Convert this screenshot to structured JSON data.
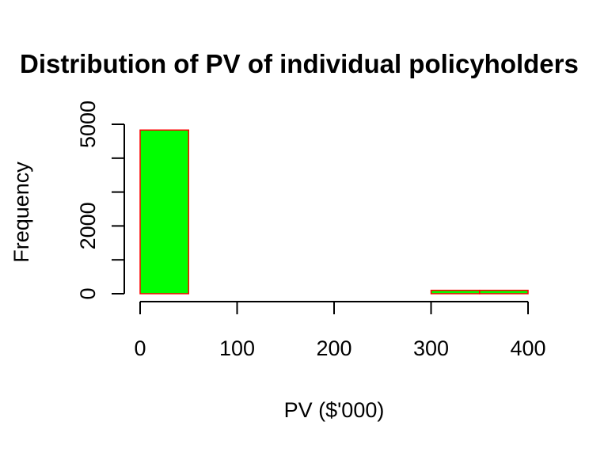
{
  "chart_data": {
    "type": "bar",
    "title": "Distribution of PV of individual policyholders",
    "xlabel": "PV ($'000)",
    "ylabel": "Frequency",
    "bins": [
      {
        "start": 0,
        "end": 50,
        "count": 4830
      },
      {
        "start": 50,
        "end": 100,
        "count": 0
      },
      {
        "start": 100,
        "end": 150,
        "count": 0
      },
      {
        "start": 150,
        "end": 200,
        "count": 0
      },
      {
        "start": 200,
        "end": 250,
        "count": 0
      },
      {
        "start": 250,
        "end": 300,
        "count": 0
      },
      {
        "start": 300,
        "end": 350,
        "count": 100
      },
      {
        "start": 350,
        "end": 400,
        "count": 100
      }
    ],
    "x_ticks": [
      0,
      100,
      200,
      300,
      400
    ],
    "x_tick_labels": [
      "0",
      "100",
      "200",
      "300",
      "400"
    ],
    "y_ticks": [
      0,
      1000,
      2000,
      3000,
      4000,
      5000
    ],
    "y_tick_labels": [
      "0",
      "",
      "2000",
      "",
      "",
      "5000"
    ],
    "xlim": [
      0,
      400
    ],
    "ylim": [
      0,
      5000
    ],
    "grid": false,
    "colors": {
      "bar_fill": "#00ff00",
      "bar_border": "#ff0000",
      "axis": "#000000",
      "text": "#000000"
    }
  }
}
